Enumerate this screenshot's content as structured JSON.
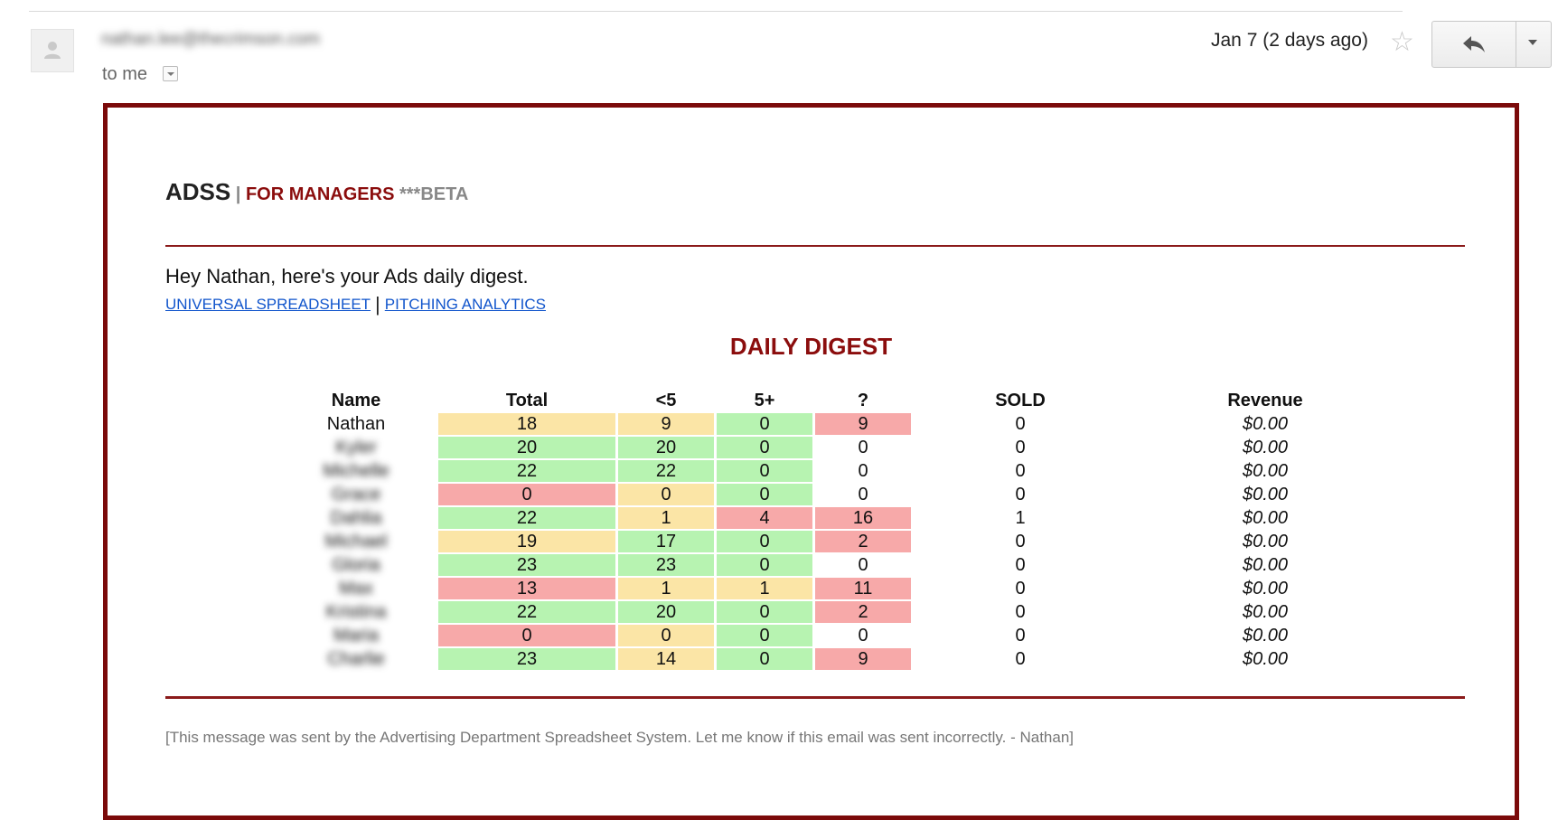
{
  "email": {
    "sender": "nathan.lee@thecrimson.com",
    "to_label": "to me",
    "date": "Jan 7 (2 days ago)"
  },
  "icons": {
    "avatar": "person-icon",
    "star": "star-icon",
    "reply": "reply-icon",
    "more": "chevron-down-icon"
  },
  "body": {
    "brand": "ADSS",
    "separator": " | ",
    "managers": "FOR MANAGERS",
    "beta": " ***BETA",
    "greeting": "Hey Nathan, here's your Ads daily digest.",
    "link_spreadsheet": "UNIVERSAL SPREADSHEET",
    "link_divider": "|",
    "link_analytics": "PITCHING ANALYTICS",
    "digest_title": "DAILY DIGEST",
    "footer": "[This message was sent by the Advertising Department Spreadsheet System. Let me know if this email was sent incorrectly. - Nathan]"
  },
  "colors": {
    "frame": "#7b0a0a",
    "accent": "#8b0d0d",
    "good": "#b7f3b1",
    "warn": "#fbe5a6",
    "bad": "#f7a9a9",
    "link": "#1155cc"
  },
  "table": {
    "headers": [
      "Name",
      "Total",
      "<5",
      "5+",
      "?",
      "SOLD",
      "Revenue"
    ],
    "rows": [
      {
        "name": "Nathan",
        "blur": false,
        "total": "18",
        "lt5": "9",
        "p5": "0",
        "q": "9",
        "sold": "0",
        "revenue": "$0.00",
        "colors": [
          "y",
          "y",
          "g",
          "r"
        ]
      },
      {
        "name": "Kyler",
        "blur": true,
        "total": "20",
        "lt5": "20",
        "p5": "0",
        "q": "0",
        "sold": "0",
        "revenue": "$0.00",
        "colors": [
          "g",
          "g",
          "g",
          ""
        ]
      },
      {
        "name": "Michelle",
        "blur": true,
        "total": "22",
        "lt5": "22",
        "p5": "0",
        "q": "0",
        "sold": "0",
        "revenue": "$0.00",
        "colors": [
          "g",
          "g",
          "g",
          ""
        ]
      },
      {
        "name": "Grace",
        "blur": true,
        "total": "0",
        "lt5": "0",
        "p5": "0",
        "q": "0",
        "sold": "0",
        "revenue": "$0.00",
        "colors": [
          "r",
          "y",
          "g",
          ""
        ]
      },
      {
        "name": "Dahlia",
        "blur": true,
        "total": "22",
        "lt5": "1",
        "p5": "4",
        "q": "16",
        "sold": "1",
        "revenue": "$0.00",
        "colors": [
          "g",
          "y",
          "r",
          "r"
        ]
      },
      {
        "name": "Michael",
        "blur": true,
        "total": "19",
        "lt5": "17",
        "p5": "0",
        "q": "2",
        "sold": "0",
        "revenue": "$0.00",
        "colors": [
          "y",
          "g",
          "g",
          "r"
        ]
      },
      {
        "name": "Gloria",
        "blur": true,
        "total": "23",
        "lt5": "23",
        "p5": "0",
        "q": "0",
        "sold": "0",
        "revenue": "$0.00",
        "colors": [
          "g",
          "g",
          "g",
          ""
        ]
      },
      {
        "name": "Max",
        "blur": true,
        "total": "13",
        "lt5": "1",
        "p5": "1",
        "q": "11",
        "sold": "0",
        "revenue": "$0.00",
        "colors": [
          "r",
          "y",
          "y",
          "r"
        ]
      },
      {
        "name": "Kristina",
        "blur": true,
        "total": "22",
        "lt5": "20",
        "p5": "0",
        "q": "2",
        "sold": "0",
        "revenue": "$0.00",
        "colors": [
          "g",
          "g",
          "g",
          "r"
        ]
      },
      {
        "name": "Maria",
        "blur": true,
        "total": "0",
        "lt5": "0",
        "p5": "0",
        "q": "0",
        "sold": "0",
        "revenue": "$0.00",
        "colors": [
          "r",
          "y",
          "g",
          ""
        ]
      },
      {
        "name": "Charlie",
        "blur": true,
        "total": "23",
        "lt5": "14",
        "p5": "0",
        "q": "9",
        "sold": "0",
        "revenue": "$0.00",
        "colors": [
          "g",
          "y",
          "g",
          "r"
        ]
      }
    ]
  }
}
